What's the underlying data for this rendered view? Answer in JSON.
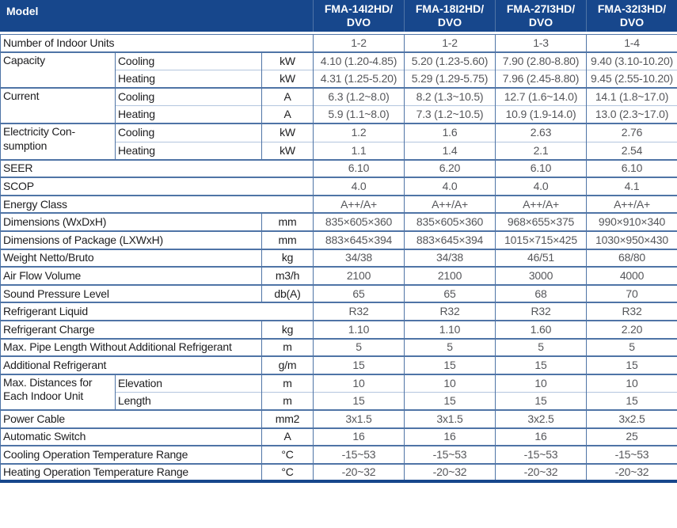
{
  "colors": {
    "header_bg": "#17478C",
    "header_divider": "#4f74a6",
    "border_major": "#4f74a6",
    "border_minor": "#b3c6de",
    "label_text": "#1d1d1f",
    "value_text": "#55565a"
  },
  "header": {
    "model_label": "Model",
    "models": [
      {
        "lines": [
          "FMA-14I2HD/",
          "DVO"
        ]
      },
      {
        "lines": [
          "FMA-18I2HD/",
          "DVO"
        ]
      },
      {
        "lines": [
          "FMA-27I3HD/",
          "DVO"
        ]
      },
      {
        "lines": [
          "FMA-32I3HD/",
          "DVO"
        ]
      }
    ]
  },
  "specs": [
    {
      "label": "Number of Indoor Units",
      "values": [
        "1-2",
        "1-2",
        "1-3",
        "1-4"
      ]
    },
    {
      "label": "Capacity",
      "subs": [
        {
          "label": "Cooling",
          "unit": "kW",
          "values": [
            "4.10 (1.20-4.85)",
            "5.20 (1.23-5.60)",
            "7.90 (2.80-8.80)",
            "9.40 (3.10-10.20)"
          ]
        },
        {
          "label": "Heating",
          "unit": "kW",
          "values": [
            "4.31 (1.25-5.20)",
            "5.29 (1.29-5.75)",
            "7.96 (2.45-8.80)",
            "9.45 (2.55-10.20)"
          ]
        }
      ]
    },
    {
      "label": "Current",
      "subs": [
        {
          "label": "Cooling",
          "unit": "A",
          "values": [
            "6.3 (1.2~8.0)",
            "8.2 (1.3~10.5)",
            "12.7 (1.6~14.0)",
            "14.1 (1.8~17.0)"
          ]
        },
        {
          "label": "Heating",
          "unit": "A",
          "values": [
            "5.9 (1.1~8.0)",
            "7.3 (1.2~10.5)",
            "10.9 (1.9-14.0)",
            "13.0 (2.3~17.0)"
          ]
        }
      ]
    },
    {
      "label": [
        "Electricity Con-",
        "sumption"
      ],
      "subs": [
        {
          "label": "Cooling",
          "unit": "kW",
          "values": [
            "1.2",
            "1.6",
            "2.63",
            "2.76"
          ]
        },
        {
          "label": "Heating",
          "unit": "kW",
          "values": [
            "1.1",
            "1.4",
            "2.1",
            "2.54"
          ]
        }
      ]
    },
    {
      "label": "SEER",
      "values": [
        "6.10",
        "6.20",
        "6.10",
        "6.10"
      ]
    },
    {
      "label": "SCOP",
      "values": [
        "4.0",
        "4.0",
        "4.0",
        "4.1"
      ]
    },
    {
      "label": "Energy Class",
      "values": [
        "A++/A+",
        "A++/A+",
        "A++/A+",
        "A++/A+"
      ]
    },
    {
      "label": "Dimensions (WxDxH)",
      "unit": "mm",
      "values": [
        "835×605×360",
        "835×605×360",
        "968×655×375",
        "990×910×340"
      ]
    },
    {
      "label": "Dimensions of Package (LXWxH)",
      "unit": "mm",
      "values": [
        "883×645×394",
        "883×645×394",
        "1015×715×425",
        "1030×950×430"
      ]
    },
    {
      "label": "Weight Netto/Bruto",
      "unit": "kg",
      "values": [
        "34/38",
        "34/38",
        "46/51",
        "68/80"
      ]
    },
    {
      "label": "Air Flow Volume",
      "unit": "m3/h",
      "values": [
        "2100",
        "2100",
        "3000",
        "4000"
      ]
    },
    {
      "label": "Sound Pressure Level",
      "unit": "db(A)",
      "values": [
        "65",
        "65",
        "68",
        "70"
      ]
    },
    {
      "label": "Refrigerant Liquid",
      "values": [
        "R32",
        "R32",
        "R32",
        "R32"
      ]
    },
    {
      "label": "Refrigerant Charge",
      "unit": "kg",
      "values": [
        "1.10",
        "1.10",
        "1.60",
        "2.20"
      ]
    },
    {
      "label": "Max. Pipe Length Without Additional Refrigerant",
      "unit": "m",
      "values": [
        "5",
        "5",
        "5",
        "5"
      ]
    },
    {
      "label": "Additional Refrigerant",
      "unit": "g/m",
      "values": [
        "15",
        "15",
        "15",
        "15"
      ]
    },
    {
      "label": [
        "Max. Distances for",
        "Each Indoor Unit"
      ],
      "subs": [
        {
          "label": "Elevation",
          "unit": "m",
          "values": [
            "10",
            "10",
            "10",
            "10"
          ]
        },
        {
          "label": "Length",
          "unit": "m",
          "values": [
            "15",
            "15",
            "15",
            "15"
          ]
        }
      ]
    },
    {
      "label": "Power Cable",
      "unit": "mm2",
      "values": [
        "3x1.5",
        "3x1.5",
        "3x2.5",
        "3x2.5"
      ]
    },
    {
      "label": "Automatic Switch",
      "unit": "A",
      "values": [
        "16",
        "16",
        "16",
        "25"
      ]
    },
    {
      "label": "Cooling Operation Temperature Range",
      "unit": "°C",
      "values": [
        "-15~53",
        "-15~53",
        "-15~53",
        "-15~53"
      ]
    },
    {
      "label": "Heating Operation Temperature Range",
      "unit": "°C",
      "values": [
        "-20~32",
        "-20~32",
        "-20~32",
        "-20~32"
      ]
    }
  ]
}
